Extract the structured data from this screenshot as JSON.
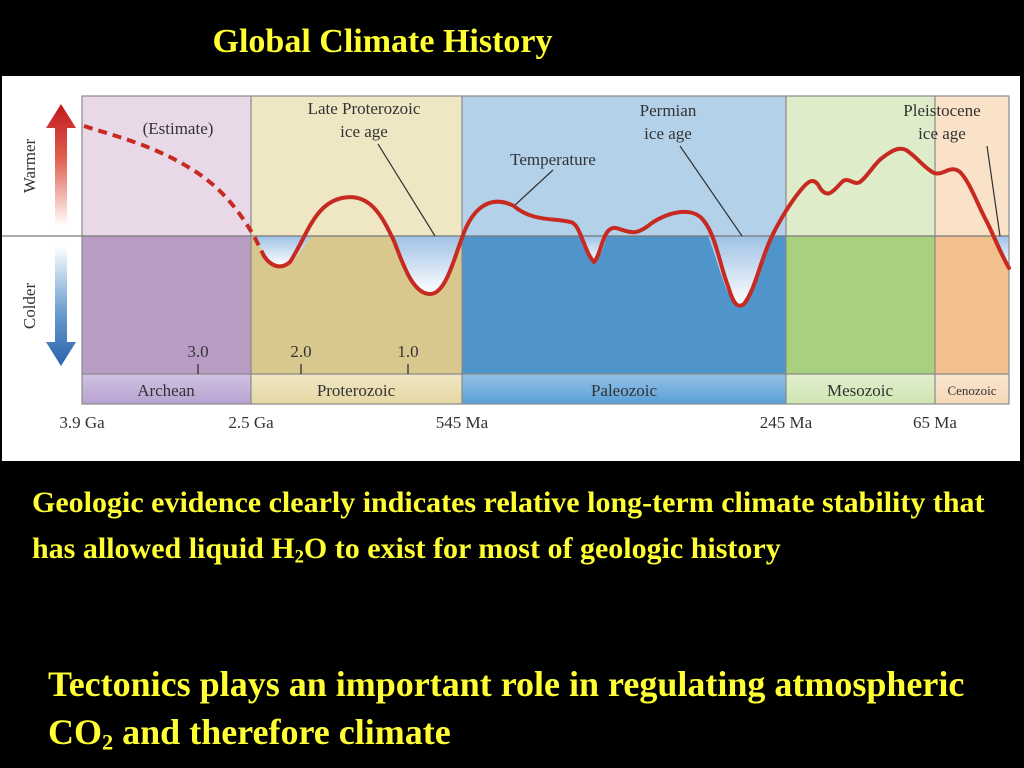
{
  "title": "Global Climate History",
  "figure": {
    "axis_labels": {
      "warmer": "Warmer",
      "colder": "Colder"
    },
    "annotations": {
      "estimate": "(Estimate)",
      "late_proterozoic_1": "Late Proterozoic",
      "late_proterozoic_2": "ice age",
      "temperature": "Temperature",
      "permian_1": "Permian",
      "permian_2": "ice age",
      "pleistocene_1": "Pleistocene",
      "pleistocene_2": "ice age"
    },
    "ga_ticks": [
      "3.0",
      "2.0",
      "1.0"
    ],
    "eras": [
      {
        "name": "Archean",
        "color_warm": "#e8d8e8",
        "color_cold": "#b89cc4",
        "band": "#b8a2d2"
      },
      {
        "name": "Proterozoic",
        "color_warm": "#efe6c4",
        "color_cold": "#d9c88e",
        "band": "#e6d8a4"
      },
      {
        "name": "Paleozoic",
        "color_warm": "#b4d1ea",
        "color_cold": "#4f94cb",
        "band": "#5aa0d8"
      },
      {
        "name": "Mesozoic",
        "color_warm": "#deecca",
        "color_cold": "#a9d07e",
        "band": "#cfe6b2"
      },
      {
        "name": "Cenozoic",
        "color_warm": "#fae2c8",
        "color_cold": "#f1c08c",
        "band": "#f6d8b6"
      }
    ],
    "boundaries": [
      "3.9 Ga",
      "2.5 Ga",
      "545 Ma",
      "245 Ma",
      "65 Ma"
    ],
    "curve_color": "#c62a20"
  },
  "para1": {
    "before": "Geologic evidence clearly indicates relative long-term climate stability that has allowed liquid H",
    "sub": "2",
    "after": "O to exist for most of geologic history"
  },
  "para2": {
    "before": "Tectonics plays an important role in regulating atmospheric CO",
    "sub": "2",
    "after": " and therefore climate"
  }
}
